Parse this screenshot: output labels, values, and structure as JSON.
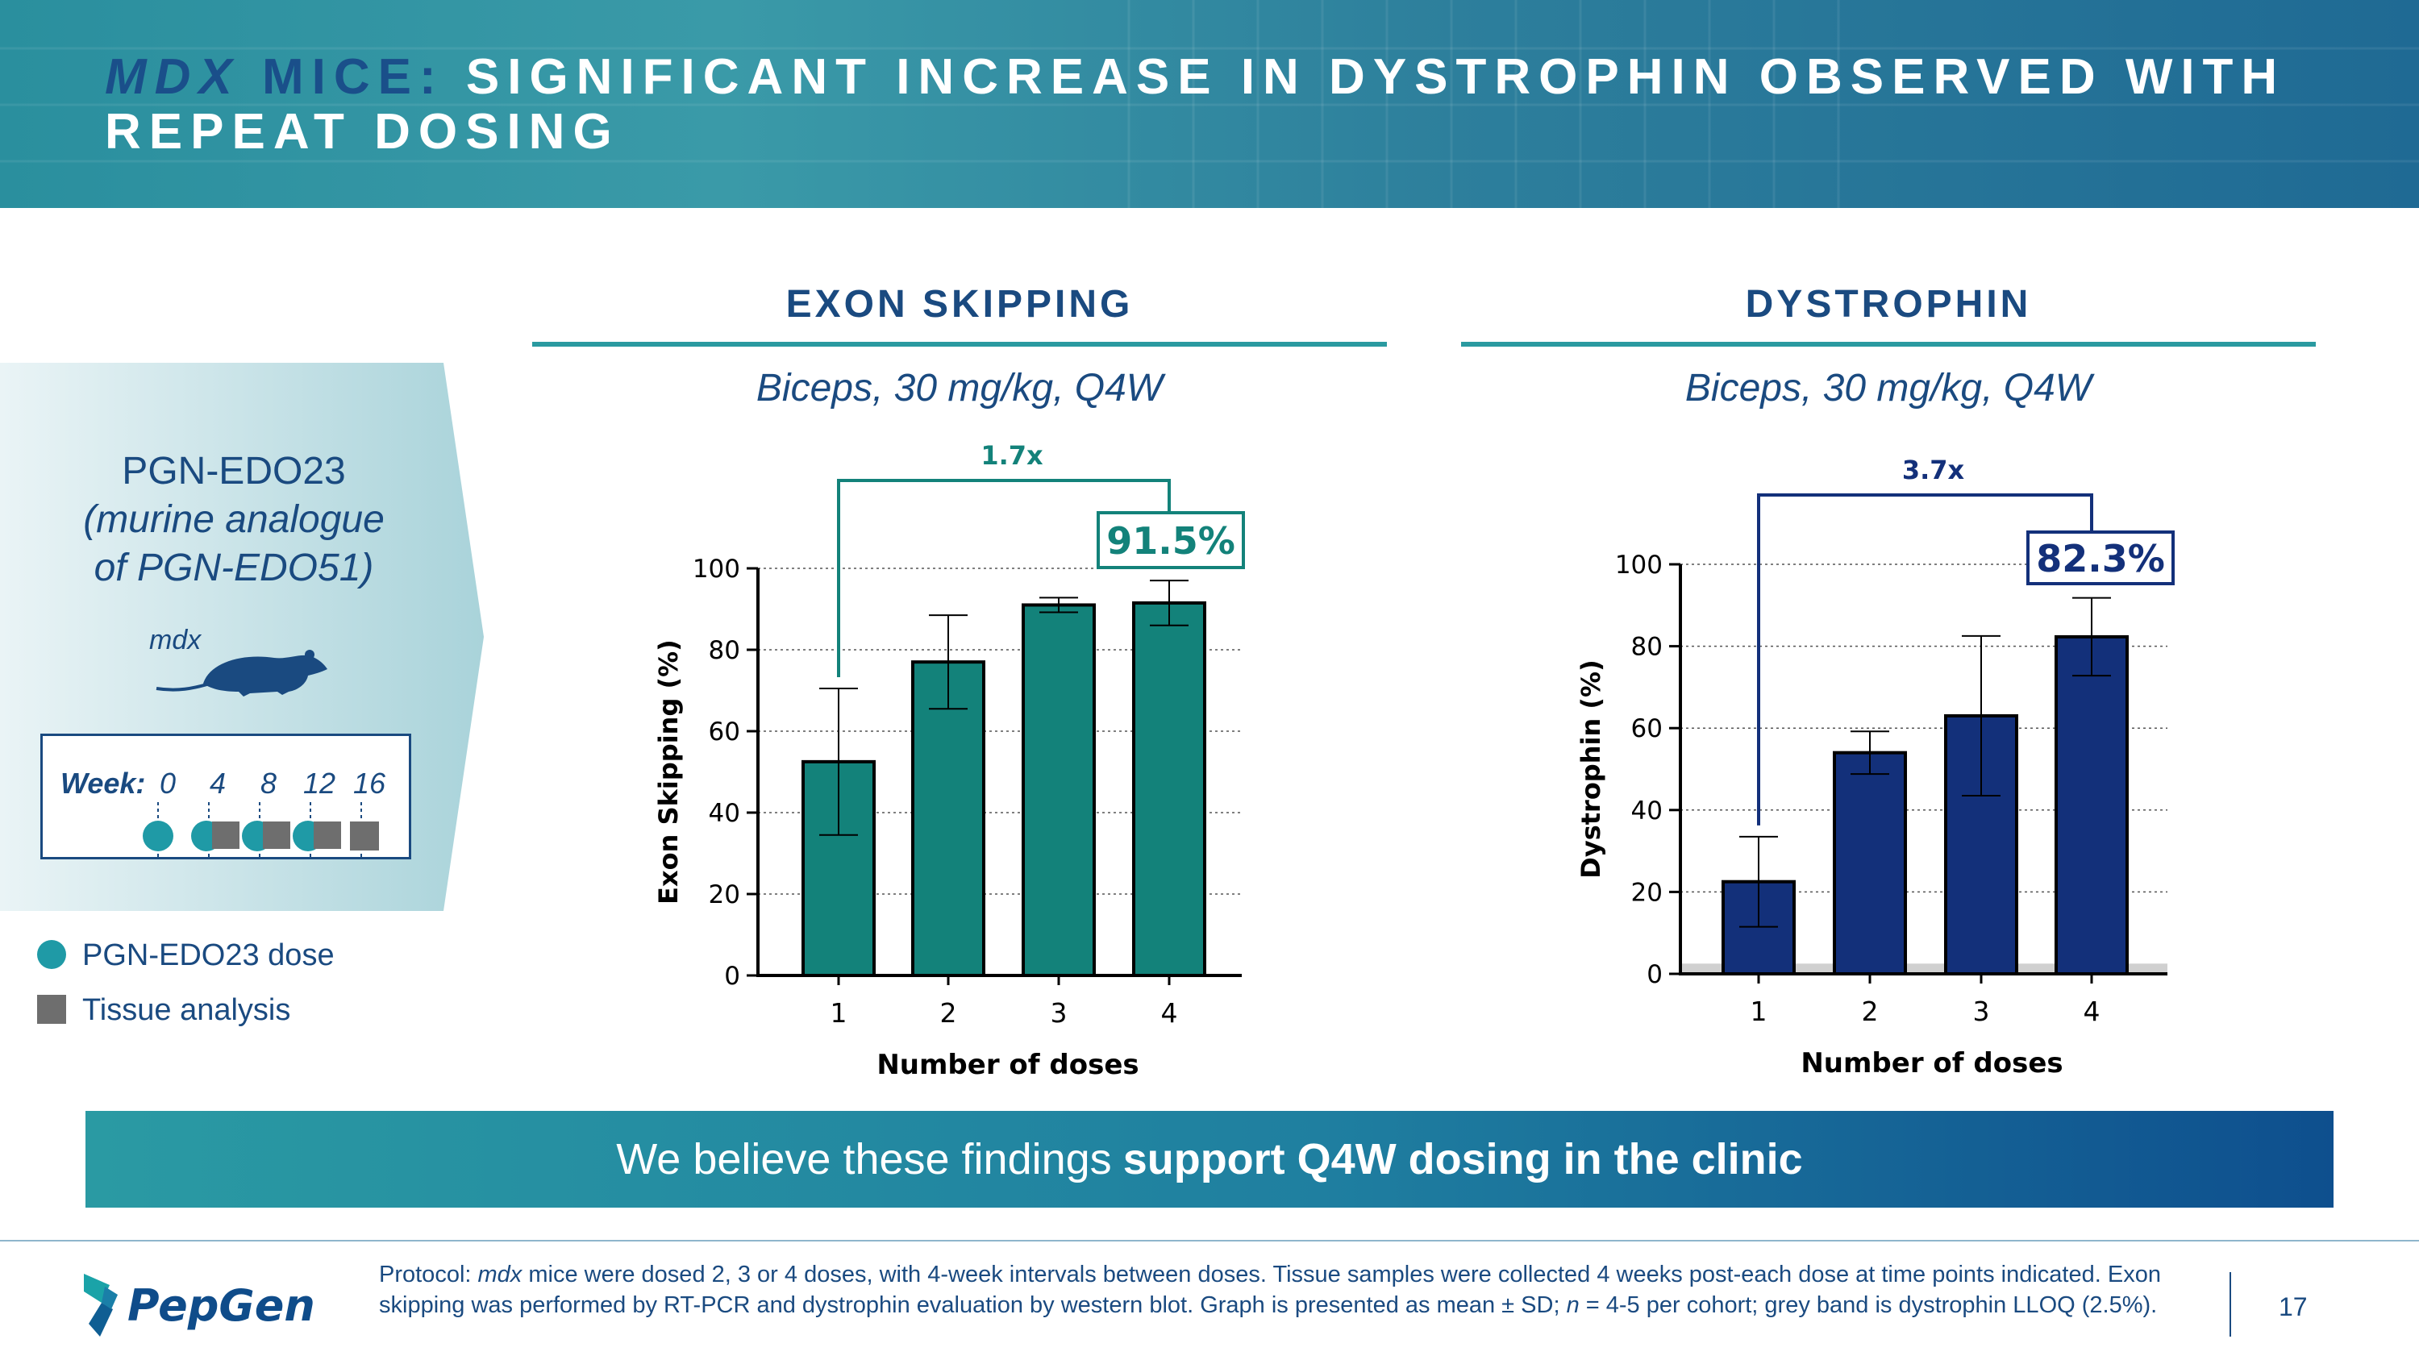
{
  "header": {
    "title_mdx": "MDX",
    "title_mice": " MICE:",
    "title_rest": " SIGNIFICANT INCREASE IN DYSTROPHIN OBSERVED WITH REPEAT DOSING"
  },
  "left": {
    "compound_line1": "PGN-EDO23",
    "compound_line2": "(murine analogue",
    "compound_line3": "of PGN-EDO51)",
    "animal_label": "mdx",
    "week_label": "Week:",
    "weeks": [
      "0",
      "4",
      "8",
      "12",
      "16"
    ],
    "legend": [
      {
        "label": "PGN-EDO23 dose",
        "icon": "dose-circle",
        "color": "#1f9aa6"
      },
      {
        "label": "Tissue analysis",
        "icon": "analysis-square",
        "color": "#6e6e6e"
      }
    ]
  },
  "chart_data": [
    {
      "type": "bar",
      "title": "EXON SKIPPING",
      "subtitle": "Biceps, 30 mg/kg, Q4W",
      "categories": [
        "1",
        "2",
        "3",
        "4"
      ],
      "values": [
        52.5,
        77,
        91,
        91.5
      ],
      "error": [
        18,
        11.5,
        1.8,
        5.5
      ],
      "xlabel": "Number of doses",
      "ylabel": "Exon Skipping (%)",
      "ylim": [
        0,
        100
      ],
      "yticks": [
        "0",
        "20",
        "40",
        "60",
        "80",
        "100"
      ],
      "fold_change": "1.7x",
      "callout": "91.5%",
      "color": "#13827a",
      "lloq_band": false
    },
    {
      "type": "bar",
      "title": "DYSTROPHIN",
      "subtitle": "Biceps, 30 mg/kg, Q4W",
      "categories": [
        "1",
        "2",
        "3",
        "4"
      ],
      "values": [
        22.5,
        54,
        63,
        82.3
      ],
      "error": [
        11,
        5.2,
        19.5,
        9.5
      ],
      "xlabel": "Number of doses",
      "ylabel": "Dystrophin (%)",
      "ylim": [
        0,
        100
      ],
      "yticks": [
        "0",
        "20",
        "40",
        "60",
        "80",
        "100"
      ],
      "fold_change": "3.7x",
      "callout": "82.3%",
      "color": "#13307a",
      "lloq_band": true,
      "lloq": 2.5
    }
  ],
  "banner": {
    "text_plain": "We believe these findings",
    "text_bold": "support Q4W dosing in the clinic"
  },
  "footer": {
    "logo_text": "PepGen",
    "protocol_label": "Protocol: ",
    "protocol_mdx": "mdx",
    "protocol_text1": " mice were dosed 2, 3 or 4 doses, with 4-week intervals between doses. Tissue samples were collected 4 weeks post-each dose at time points indicated. Exon skipping was performed by RT-PCR and dystrophin evaluation by western blot. Graph is presented as mean ± SD; ",
    "protocol_n": "n",
    "protocol_text2": " = 4-5 per cohort; grey band is dystrophin LLOQ (2.5%).",
    "page_number": "17"
  },
  "colors": {
    "teal": "#13827a",
    "navy": "#13307a",
    "text_navy": "#1a4a80",
    "rule_teal": "#2a9aa0"
  }
}
